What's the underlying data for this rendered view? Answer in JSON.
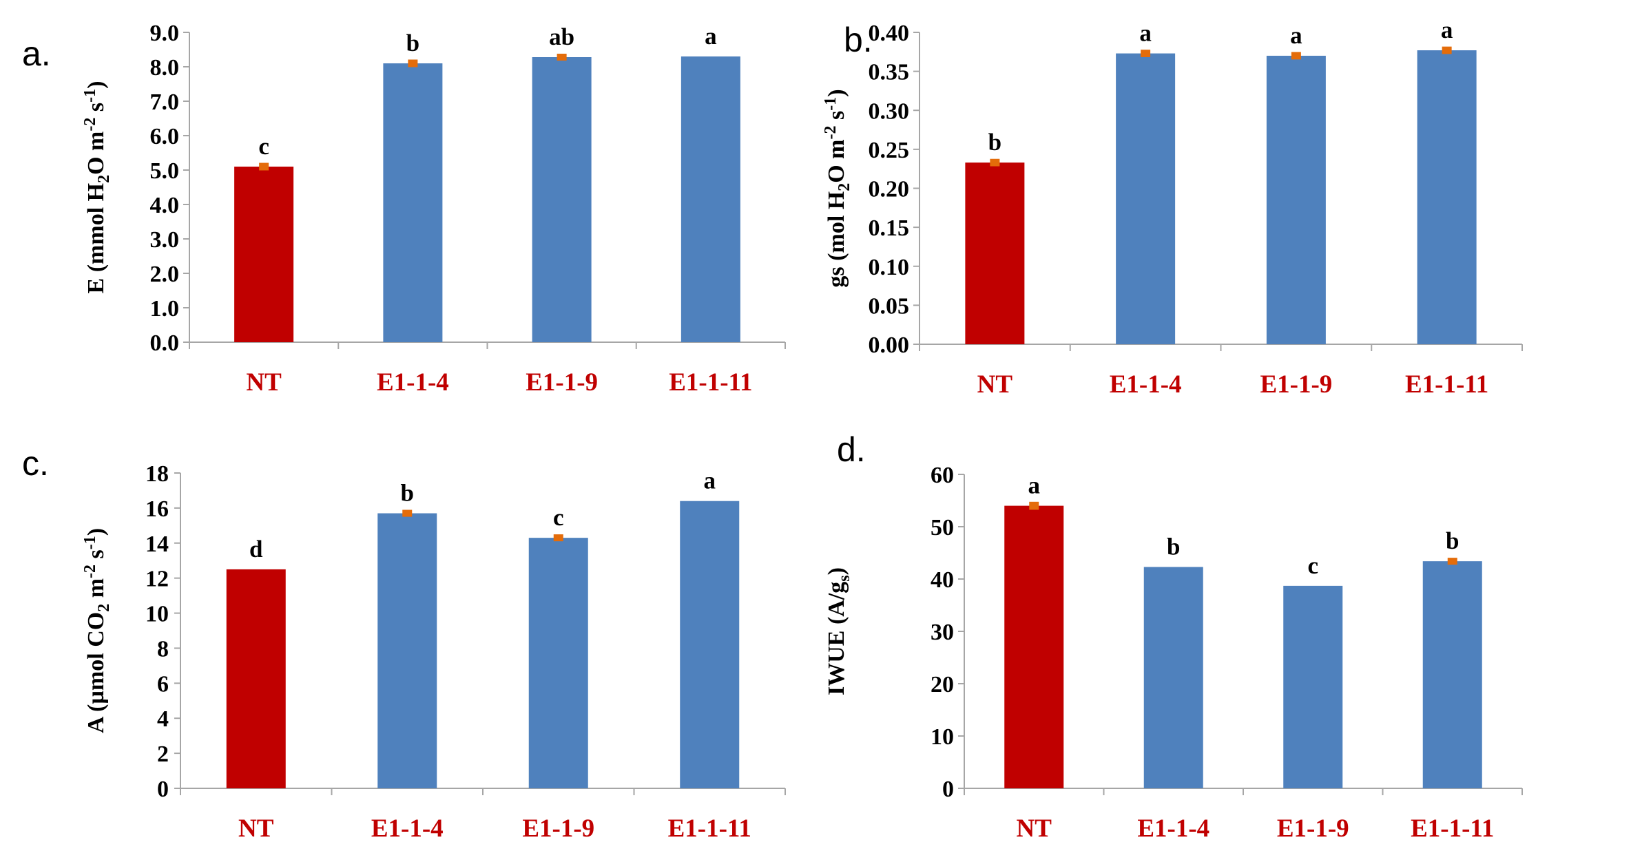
{
  "colors": {
    "control_bar": "#c00000",
    "transgenic_bar": "#4f81bd",
    "error_bar": "#e46c0a",
    "category_label": "#c00000",
    "axis_line": "#a6a6a6"
  },
  "chart_data": [
    {
      "type": "bar",
      "panel": "a.",
      "categories": [
        "NT",
        "E1-1-4",
        "E1-1-9",
        "E1-1-11"
      ],
      "values": [
        5.1,
        8.1,
        8.28,
        8.3
      ],
      "errors": [
        0.07,
        0.07,
        0.06,
        0.0
      ],
      "significance": [
        "c",
        "b",
        "ab",
        "a"
      ],
      "ylabel": {
        "pre": "E (mmol H",
        "sub1": "2",
        "mid": "O m",
        "sup1": "-2",
        "mid2": " s",
        "sup2": "-1",
        "post": ")"
      },
      "ylim": [
        0,
        9
      ],
      "yticks": [
        "0.0",
        "1.0",
        "2.0",
        "3.0",
        "4.0",
        "5.0",
        "6.0",
        "7.0",
        "8.0",
        "9.0"
      ]
    },
    {
      "type": "bar",
      "panel": "b.",
      "categories": [
        "NT",
        "E1-1-4",
        "E1-1-9",
        "E1-1-11"
      ],
      "values": [
        0.233,
        0.373,
        0.37,
        0.377
      ],
      "errors": [
        0.003,
        0.003,
        0.003,
        0.003
      ],
      "significance": [
        "b",
        "a",
        "a",
        "a"
      ],
      "ylabel": {
        "pre": "gs (mol H",
        "sub1": "2",
        "mid": "O m",
        "sup1": "-2",
        "mid2": " s",
        "sup2": "-1",
        "post": ")"
      },
      "ylim": [
        0,
        0.4
      ],
      "yticks": [
        "0.00",
        "0.05",
        "0.10",
        "0.15",
        "0.20",
        "0.25",
        "0.30",
        "0.35",
        "0.40"
      ]
    },
    {
      "type": "bar",
      "panel": "c.",
      "categories": [
        "NT",
        "E1-1-4",
        "E1-1-9",
        "E1-1-11"
      ],
      "values": [
        12.5,
        15.7,
        14.3,
        16.4
      ],
      "errors": [
        0.0,
        0.12,
        0.12,
        0.0
      ],
      "significance": [
        "d",
        "b",
        "c",
        "a"
      ],
      "ylabel": {
        "pre": "A (µmol CO",
        "sub1": "2",
        "mid": " m",
        "sup1": "-2",
        "mid2": " s",
        "sup2": "-1",
        "post": ")"
      },
      "ylim": [
        0,
        18
      ],
      "yticks": [
        "0",
        "2",
        "4",
        "6",
        "8",
        "10",
        "12",
        "14",
        "16",
        "18"
      ]
    },
    {
      "type": "bar",
      "panel": "d.",
      "categories": [
        "NT",
        "E1-1-4",
        "E1-1-9",
        "E1-1-11"
      ],
      "values": [
        54.0,
        42.3,
        38.7,
        43.4
      ],
      "errors": [
        0.5,
        0.0,
        0.0,
        0.4
      ],
      "significance": [
        "a",
        "b",
        "c",
        "b"
      ],
      "ylabel": {
        "pre": "IWUE (A/g",
        "sub1": "s",
        "mid": ")",
        "sup1": "",
        "mid2": "",
        "sup2": "",
        "post": ""
      },
      "ylim": [
        0,
        60
      ],
      "yticks": [
        "0",
        "10",
        "20",
        "30",
        "40",
        "50",
        "60"
      ]
    }
  ]
}
